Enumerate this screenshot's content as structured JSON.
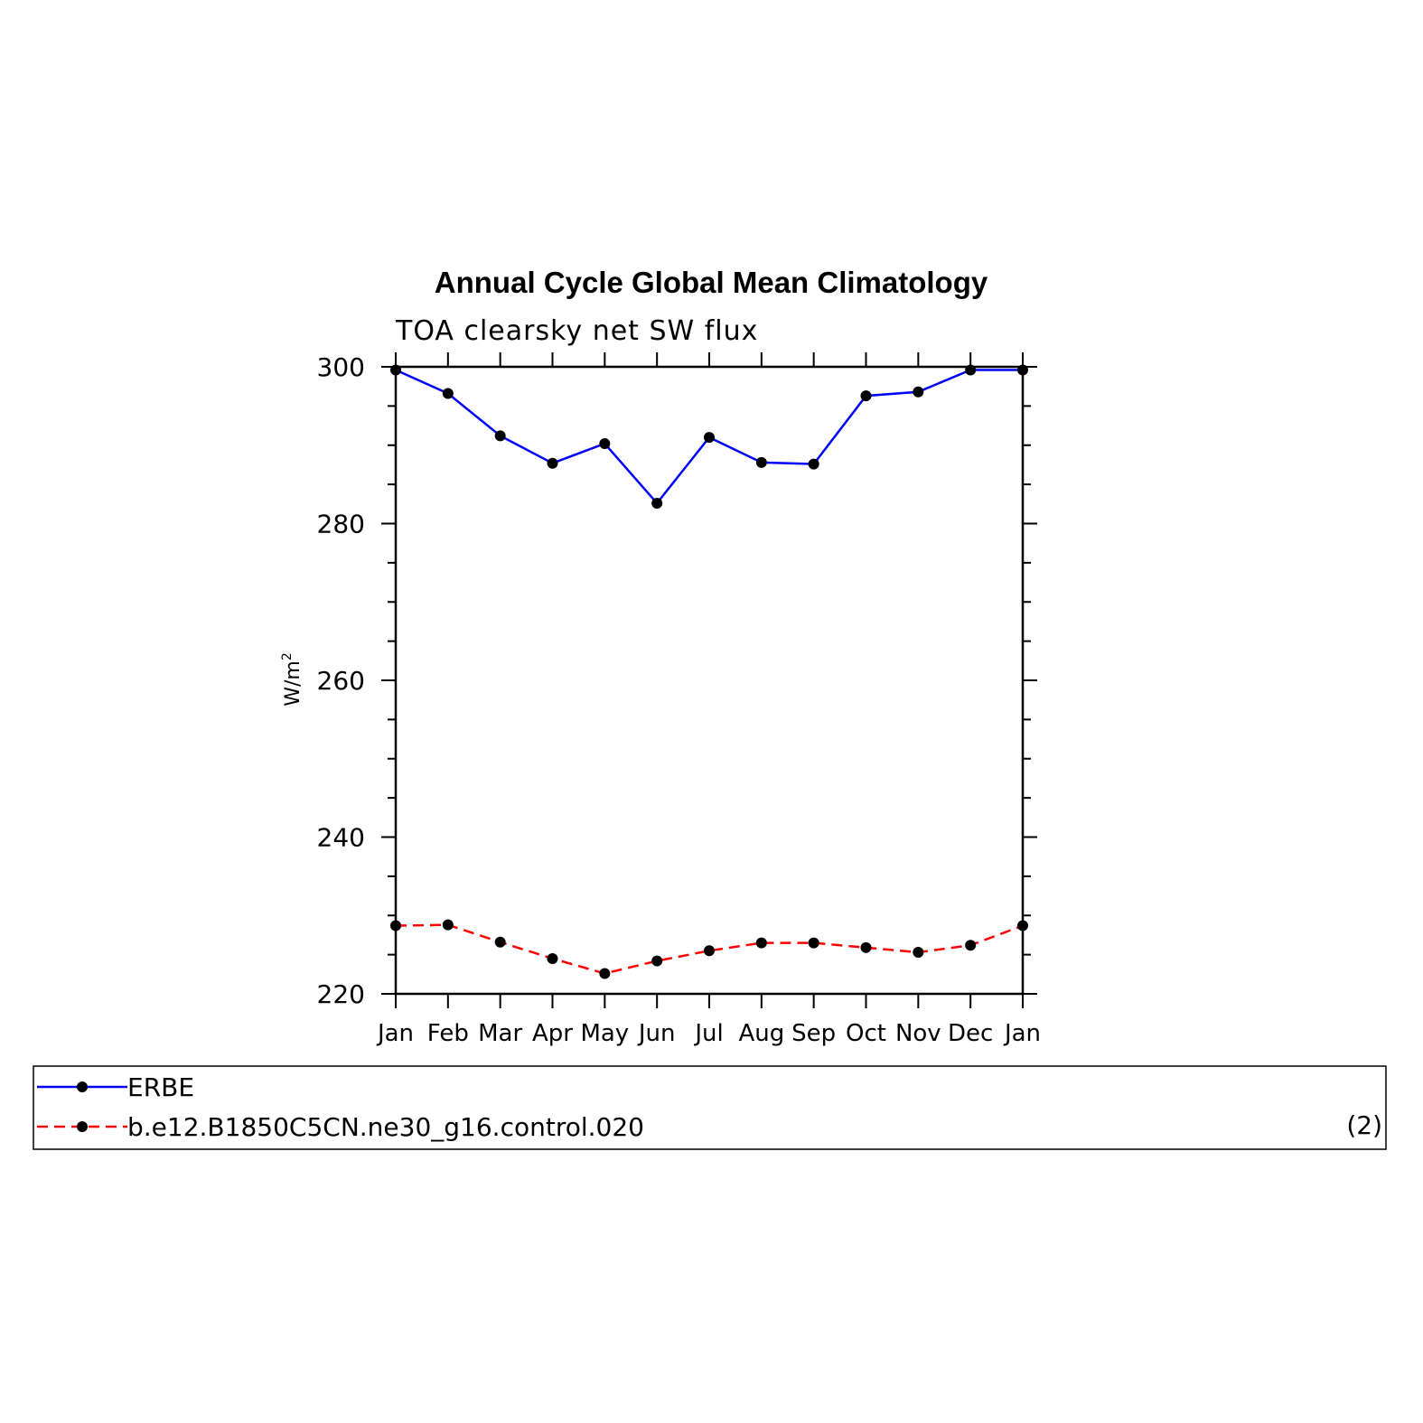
{
  "chart_data": {
    "type": "line",
    "title": "Annual Cycle Global Mean Climatology",
    "subtitle": "TOA clearsky net SW flux",
    "ylabel": "W/m",
    "ylabel_sup": "2",
    "ylim": [
      220,
      300
    ],
    "yticks": [
      "220",
      "240",
      "260",
      "280",
      "300"
    ],
    "categories": [
      "Jan",
      "Feb",
      "Mar",
      "Apr",
      "May",
      "Jun",
      "Jul",
      "Aug",
      "Sep",
      "Oct",
      "Nov",
      "Dec",
      "Jan"
    ],
    "series": [
      {
        "name": "ERBE",
        "color": "#0000ff",
        "style": "solid",
        "values": [
          299.6,
          296.6,
          291.2,
          287.7,
          290.2,
          282.6,
          291.0,
          287.8,
          287.6,
          296.3,
          296.8,
          299.6,
          299.6
        ]
      },
      {
        "name": "b.e12.B1850C5CN.ne30_g16.control.020",
        "color": "#ff0000",
        "style": "dashed",
        "values": [
          228.7,
          228.8,
          226.6,
          224.5,
          222.6,
          224.2,
          225.5,
          226.5,
          226.5,
          225.9,
          225.3,
          226.2,
          228.7
        ]
      }
    ],
    "legend_note": "(2)"
  }
}
